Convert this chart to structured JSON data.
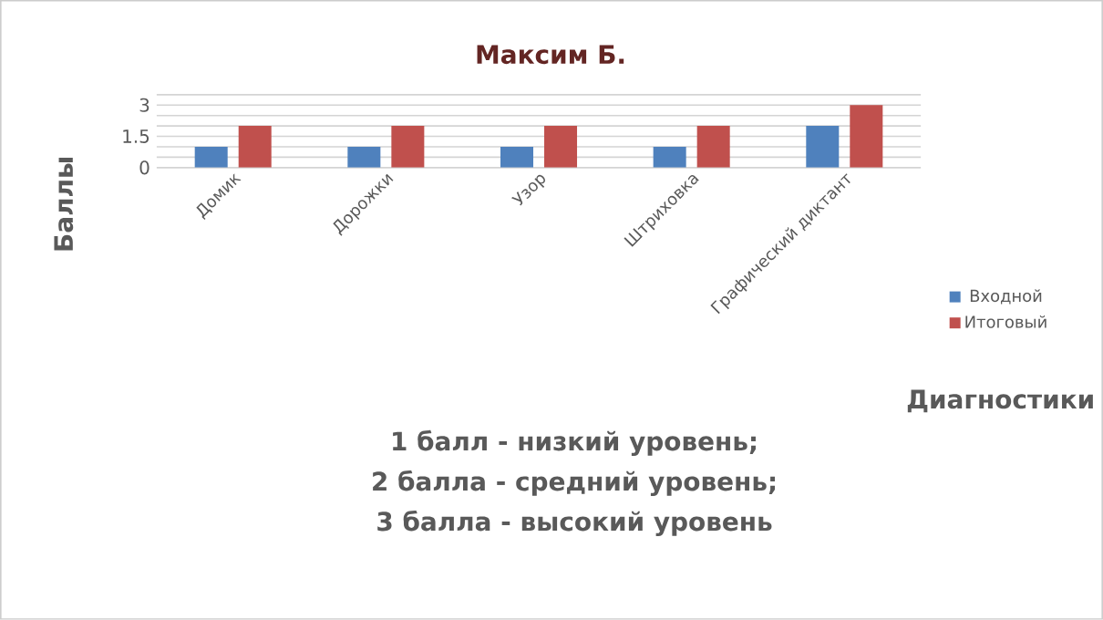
{
  "chart_data": {
    "type": "bar",
    "title": "Максим Б.",
    "xlabel": "Диагностики",
    "ylabel": "Баллы",
    "categories": [
      "Домик",
      "Дорожки",
      "Узор",
      "Штриховка",
      "Графический диктант"
    ],
    "series": [
      {
        "name": "Входной",
        "color": "#4f81bd",
        "values": [
          1,
          1,
          1,
          1,
          2
        ]
      },
      {
        "name": "Итоговый",
        "color": "#c0504d",
        "values": [
          2,
          2,
          2,
          2,
          3
        ]
      }
    ],
    "ylim": [
      0,
      3.5
    ],
    "yticks": [
      0,
      {
        "value": 0.5,
        "label": null
      },
      {
        "value": 1,
        "label": null
      },
      1.5,
      {
        "value": 2,
        "label": null
      },
      {
        "value": 2.5,
        "label": null
      },
      3,
      {
        "value": 3.5,
        "label": null
      }
    ],
    "grid": "y",
    "legend": "right",
    "annotations": [
      "1 балл - низкий уровень;",
      "2 балла - средний уровень;",
      "3 балла - высокий уровень"
    ]
  }
}
